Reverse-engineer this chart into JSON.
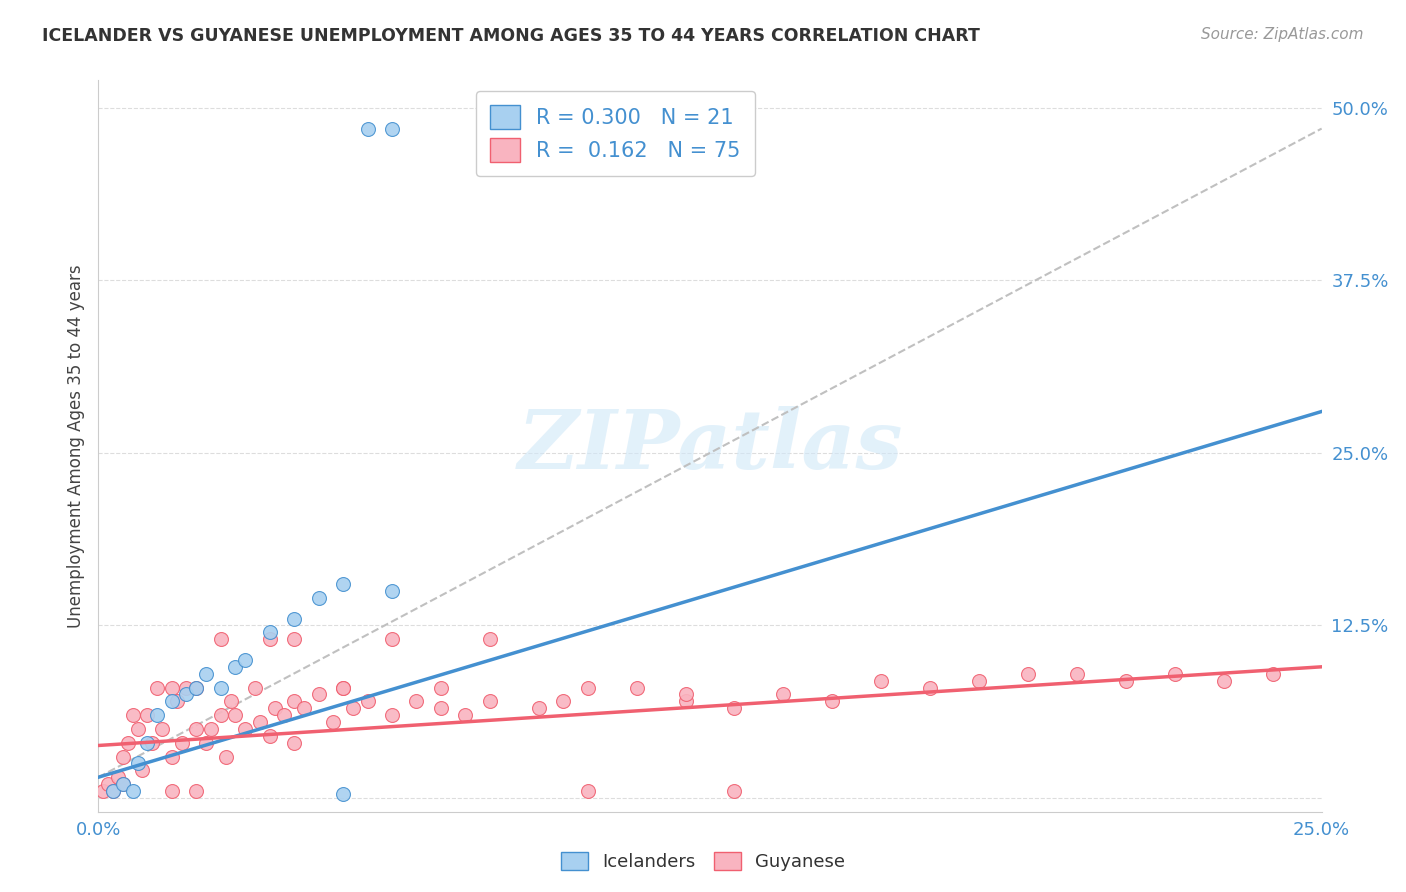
{
  "title": "ICELANDER VS GUYANESE UNEMPLOYMENT AMONG AGES 35 TO 44 YEARS CORRELATION CHART",
  "source": "Source: ZipAtlas.com",
  "ylabel": "Unemployment Among Ages 35 to 44 years",
  "xlim": [
    0.0,
    0.25
  ],
  "ylim": [
    -0.01,
    0.52
  ],
  "xticks": [
    0.0,
    0.05,
    0.1,
    0.15,
    0.2,
    0.25
  ],
  "xticklabels": [
    "0.0%",
    "",
    "",
    "",
    "",
    "25.0%"
  ],
  "yticks": [
    0.0,
    0.125,
    0.25,
    0.375,
    0.5
  ],
  "yticklabels": [
    "",
    "12.5%",
    "25.0%",
    "37.5%",
    "50.0%"
  ],
  "legend_r_iceland": "0.300",
  "legend_n_iceland": "21",
  "legend_r_guyanese": "0.162",
  "legend_n_guyanese": "75",
  "iceland_color": "#A8D0F0",
  "guyanese_color": "#F9B4C0",
  "iceland_line_color": "#4490D0",
  "guyanese_line_color": "#F06070",
  "trendline_dashed_color": "#C0C0C0",
  "watermark_color": "#D0E8F8",
  "iceland_scatter_x": [
    0.003,
    0.005,
    0.007,
    0.008,
    0.01,
    0.012,
    0.015,
    0.018,
    0.02,
    0.022,
    0.025,
    0.028,
    0.03,
    0.035,
    0.04,
    0.045,
    0.05,
    0.055,
    0.06,
    0.05,
    0.06
  ],
  "iceland_scatter_y": [
    0.005,
    0.01,
    0.005,
    0.025,
    0.04,
    0.06,
    0.07,
    0.075,
    0.08,
    0.09,
    0.08,
    0.095,
    0.1,
    0.12,
    0.13,
    0.145,
    0.155,
    0.485,
    0.485,
    0.003,
    0.15
  ],
  "guyanese_scatter_x": [
    0.001,
    0.002,
    0.003,
    0.004,
    0.005,
    0.005,
    0.006,
    0.007,
    0.008,
    0.009,
    0.01,
    0.011,
    0.012,
    0.013,
    0.015,
    0.015,
    0.016,
    0.017,
    0.018,
    0.02,
    0.02,
    0.022,
    0.023,
    0.025,
    0.026,
    0.027,
    0.028,
    0.03,
    0.032,
    0.033,
    0.035,
    0.036,
    0.038,
    0.04,
    0.04,
    0.042,
    0.045,
    0.048,
    0.05,
    0.052,
    0.055,
    0.06,
    0.065,
    0.07,
    0.075,
    0.08,
    0.09,
    0.095,
    0.1,
    0.11,
    0.12,
    0.13,
    0.14,
    0.15,
    0.16,
    0.17,
    0.18,
    0.19,
    0.2,
    0.21,
    0.22,
    0.23,
    0.24,
    0.1,
    0.12,
    0.13,
    0.025,
    0.04,
    0.06,
    0.08,
    0.035,
    0.05,
    0.07,
    0.015,
    0.02
  ],
  "guyanese_scatter_y": [
    0.005,
    0.01,
    0.005,
    0.015,
    0.03,
    0.01,
    0.04,
    0.06,
    0.05,
    0.02,
    0.06,
    0.04,
    0.08,
    0.05,
    0.03,
    0.005,
    0.07,
    0.04,
    0.08,
    0.05,
    0.005,
    0.04,
    0.05,
    0.06,
    0.03,
    0.07,
    0.06,
    0.05,
    0.08,
    0.055,
    0.045,
    0.065,
    0.06,
    0.04,
    0.07,
    0.065,
    0.075,
    0.055,
    0.08,
    0.065,
    0.07,
    0.06,
    0.07,
    0.065,
    0.06,
    0.07,
    0.065,
    0.07,
    0.005,
    0.08,
    0.07,
    0.065,
    0.075,
    0.07,
    0.085,
    0.08,
    0.085,
    0.09,
    0.09,
    0.085,
    0.09,
    0.085,
    0.09,
    0.08,
    0.075,
    0.005,
    0.115,
    0.115,
    0.115,
    0.115,
    0.115,
    0.08,
    0.08,
    0.08,
    0.08
  ],
  "iceland_trendline_x": [
    0.0,
    0.25
  ],
  "iceland_trendline_y": [
    0.015,
    0.28
  ],
  "guyanese_trendline_x": [
    0.0,
    0.25
  ],
  "guyanese_trendline_y": [
    0.038,
    0.095
  ],
  "diag_line_x": [
    0.0,
    0.25
  ],
  "diag_line_y": [
    0.015,
    0.485
  ],
  "background_color": "#FFFFFF",
  "grid_color": "#DDDDDD"
}
